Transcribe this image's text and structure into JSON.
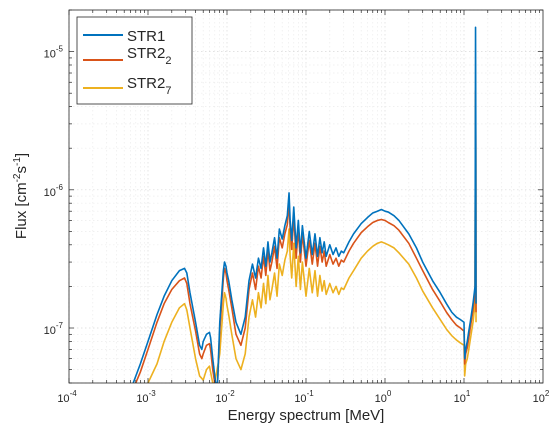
{
  "chart_data": {
    "type": "line",
    "xlabel": "Energy spectrum [MeV]",
    "ylabel": {
      "prefix": "Flux [cm",
      "exp1": "-2",
      "mid": "s",
      "exp2": "-1",
      "suffix": "]"
    },
    "xscale": "log",
    "yscale": "log",
    "xlim": [
      0.0001,
      100
    ],
    "ylim": [
      4e-08,
      2e-05
    ],
    "grid": true,
    "legend_position": "top-left",
    "x_ticks": [
      {
        "base": "10",
        "exp": "-4"
      },
      {
        "base": "10",
        "exp": "-3"
      },
      {
        "base": "10",
        "exp": "-2"
      },
      {
        "base": "10",
        "exp": "-1"
      },
      {
        "base": "10",
        "exp": "0"
      },
      {
        "base": "10",
        "exp": "1"
      },
      {
        "base": "10",
        "exp": "2"
      }
    ],
    "y_ticks": [
      {
        "base": "10",
        "exp": "-7"
      },
      {
        "base": "10",
        "exp": "-6"
      },
      {
        "base": "10",
        "exp": "-5"
      }
    ],
    "series": [
      {
        "name": "STR1",
        "label_main": "STR1",
        "label_sub": "",
        "color": "#0072BD",
        "x": [
          0.00065,
          0.0008,
          0.001,
          0.0013,
          0.0016,
          0.002,
          0.0025,
          0.0029,
          0.0031,
          0.0034,
          0.004,
          0.0045,
          0.0048,
          0.005,
          0.0055,
          0.006,
          0.0062,
          0.0066,
          0.007,
          0.0072,
          0.0076,
          0.0081,
          0.009,
          0.0093,
          0.0097,
          0.01,
          0.0105,
          0.0115,
          0.013,
          0.015,
          0.017,
          0.019,
          0.021,
          0.023,
          0.025,
          0.027,
          0.029,
          0.031,
          0.033,
          0.035,
          0.037,
          0.04,
          0.043,
          0.046,
          0.05,
          0.054,
          0.058,
          0.061,
          0.063,
          0.066,
          0.07,
          0.075,
          0.08,
          0.085,
          0.09,
          0.1,
          0.11,
          0.12,
          0.13,
          0.14,
          0.15,
          0.16,
          0.17,
          0.18,
          0.2,
          0.22,
          0.24,
          0.26,
          0.28,
          0.3,
          0.35,
          0.4,
          0.5,
          0.6,
          0.7,
          0.8,
          0.9,
          1.0,
          1.1,
          1.3,
          1.5,
          2.0,
          2.5,
          3.0,
          4.0,
          5.0,
          6.0,
          7.0,
          8.0,
          9.0,
          10.0,
          10.2,
          10.5,
          11.0,
          11.5,
          12.0,
          13.0,
          13.8,
          14.0,
          14.1,
          14.2
        ],
        "y": [
          4e-08,
          5.5e-08,
          8e-08,
          1.25e-07,
          1.7e-07,
          2.2e-07,
          2.6e-07,
          2.7e-07,
          2.5e-07,
          1.8e-07,
          1.1e-07,
          7.5e-08,
          7e-08,
          8e-08,
          9e-08,
          9.3e-08,
          8.5e-08,
          6e-08,
          4.5e-08,
          4e-08,
          4e-08,
          1.1e-07,
          2.6e-07,
          3e-07,
          2.8e-07,
          2.5e-07,
          2.2e-07,
          1.6e-07,
          1.1e-07,
          9e-08,
          1.2e-07,
          2.2e-07,
          2.9e-07,
          2.3e-07,
          3.2e-07,
          2.7e-07,
          3.8e-07,
          2.8e-07,
          4.2e-07,
          3e-07,
          3.5e-07,
          4.5e-07,
          3.2e-07,
          5.2e-07,
          4.4e-07,
          5.5e-07,
          6.5e-07,
          9.5e-07,
          6e-07,
          4.3e-07,
          7.5e-07,
          3.8e-07,
          6e-07,
          3.5e-07,
          5.5e-07,
          3.2e-07,
          5e-07,
          3.4e-07,
          4.8e-07,
          3.3e-07,
          4.5e-07,
          3.5e-07,
          4.2e-07,
          3.3e-07,
          4e-07,
          3.4e-07,
          3.8e-07,
          3.3e-07,
          3.6e-07,
          3.5e-07,
          4.2e-07,
          4.8e-07,
          5.7e-07,
          6.3e-07,
          6.8e-07,
          7e-07,
          7.2e-07,
          7e-07,
          6.9e-07,
          6.5e-07,
          6e-07,
          4.8e-07,
          3.8e-07,
          3e-07,
          2.2e-07,
          1.8e-07,
          1.5e-07,
          1.3e-07,
          1.2e-07,
          1.15e-07,
          1.1e-07,
          6e-08,
          7e-08,
          8e-08,
          9.5e-08,
          1.1e-07,
          1.5e-07,
          2e-07,
          1.5e-05,
          3e-06,
          1.5e-07
        ]
      },
      {
        "name": "STR2_2",
        "label_main": "STR2",
        "label_sub": "2",
        "color": "#D95319",
        "x": [
          0.0007,
          0.0008,
          0.001,
          0.0013,
          0.0016,
          0.002,
          0.0025,
          0.0029,
          0.0031,
          0.0034,
          0.004,
          0.0045,
          0.0048,
          0.005,
          0.0055,
          0.006,
          0.0062,
          0.0066,
          0.007,
          0.0072,
          0.0076,
          0.0081,
          0.009,
          0.0093,
          0.0097,
          0.01,
          0.0105,
          0.0115,
          0.013,
          0.015,
          0.017,
          0.019,
          0.021,
          0.023,
          0.025,
          0.027,
          0.029,
          0.031,
          0.033,
          0.035,
          0.037,
          0.04,
          0.043,
          0.046,
          0.05,
          0.054,
          0.058,
          0.061,
          0.063,
          0.066,
          0.07,
          0.075,
          0.08,
          0.085,
          0.09,
          0.1,
          0.11,
          0.12,
          0.13,
          0.14,
          0.15,
          0.16,
          0.17,
          0.18,
          0.2,
          0.22,
          0.24,
          0.26,
          0.28,
          0.3,
          0.35,
          0.4,
          0.5,
          0.6,
          0.7,
          0.8,
          0.9,
          1.0,
          1.1,
          1.3,
          1.5,
          2.0,
          2.5,
          3.0,
          4.0,
          5.0,
          6.0,
          7.0,
          8.0,
          9.0,
          10.0,
          10.2,
          10.5,
          11.0,
          11.5,
          12.0,
          13.0,
          13.8,
          14.0,
          14.1,
          14.2
        ],
        "y": [
          4e-08,
          4.8e-08,
          7e-08,
          1.1e-07,
          1.5e-07,
          1.9e-07,
          2.2e-07,
          2.3e-07,
          2.1e-07,
          1.5e-07,
          9.5e-08,
          6.5e-08,
          6e-08,
          6.5e-08,
          7.5e-08,
          7.7e-08,
          7e-08,
          5e-08,
          4e-08,
          4e-08,
          4e-08,
          9.5e-08,
          2.3e-07,
          2.7e-07,
          2.5e-07,
          2.2e-07,
          1.9e-07,
          1.4e-07,
          9e-08,
          7.5e-08,
          1e-07,
          1.9e-07,
          2.5e-07,
          1.9e-07,
          2.8e-07,
          2.3e-07,
          3.3e-07,
          2.4e-07,
          3.7e-07,
          2.6e-07,
          3e-07,
          3.9e-07,
          2.7e-07,
          4.5e-07,
          3.8e-07,
          4.8e-07,
          5.6e-07,
          8.2e-07,
          5.2e-07,
          3.7e-07,
          6.5e-07,
          3.2e-07,
          5.2e-07,
          3e-07,
          4.8e-07,
          2.8e-07,
          4.3e-07,
          2.9e-07,
          4.1e-07,
          2.8e-07,
          3.9e-07,
          3e-07,
          3.6e-07,
          2.8e-07,
          3.4e-07,
          2.9e-07,
          3.2e-07,
          2.8e-07,
          3.1e-07,
          3e-07,
          3.6e-07,
          4.1e-07,
          4.9e-07,
          5.4e-07,
          5.8e-07,
          6e-07,
          6.1e-07,
          6e-07,
          5.8e-07,
          5.5e-07,
          5.1e-07,
          4.1e-07,
          3.2e-07,
          2.6e-07,
          1.9e-07,
          1.55e-07,
          1.3e-07,
          1.15e-07,
          1.05e-07,
          1e-07,
          9.5e-08,
          5.5e-08,
          6.5e-08,
          7.2e-08,
          8.5e-08,
          1e-07,
          1.35e-07,
          1.8e-07,
          5.2e-06,
          2.2e-06,
          1.3e-07
        ]
      },
      {
        "name": "STR2_7",
        "label_main": "STR2",
        "label_sub": "7",
        "color": "#EDB120",
        "x": [
          0.001,
          0.0013,
          0.0016,
          0.002,
          0.0025,
          0.0029,
          0.0031,
          0.0034,
          0.004,
          0.0045,
          0.005,
          0.0055,
          0.006,
          0.0062,
          0.0066,
          0.007,
          0.0081,
          0.009,
          0.0093,
          0.0097,
          0.01,
          0.0105,
          0.0115,
          0.013,
          0.015,
          0.017,
          0.019,
          0.021,
          0.023,
          0.025,
          0.027,
          0.029,
          0.031,
          0.033,
          0.035,
          0.037,
          0.04,
          0.043,
          0.046,
          0.05,
          0.054,
          0.058,
          0.061,
          0.063,
          0.066,
          0.07,
          0.075,
          0.08,
          0.085,
          0.09,
          0.1,
          0.11,
          0.12,
          0.13,
          0.14,
          0.15,
          0.16,
          0.17,
          0.18,
          0.2,
          0.22,
          0.24,
          0.26,
          0.28,
          0.3,
          0.35,
          0.4,
          0.5,
          0.6,
          0.7,
          0.8,
          0.9,
          1.0,
          1.1,
          1.3,
          1.5,
          2.0,
          2.5,
          3.0,
          4.0,
          5.0,
          6.0,
          7.0,
          8.0,
          9.0,
          10.0,
          10.2,
          10.5,
          11.0,
          11.5,
          12.0,
          13.0,
          13.8,
          14.0,
          14.1,
          14.2
        ],
        "y": [
          4e-08,
          5.5e-08,
          8e-08,
          1.1e-07,
          1.4e-07,
          1.5e-07,
          1.35e-07,
          1e-07,
          6e-08,
          4.5e-08,
          4.2e-08,
          5e-08,
          5.3e-08,
          4.8e-08,
          4e-08,
          4e-08,
          6.5e-08,
          1.5e-07,
          1.8e-07,
          1.65e-07,
          1.45e-07,
          1.25e-07,
          9e-08,
          6e-08,
          5e-08,
          6.5e-08,
          1.2e-07,
          1.6e-07,
          1.2e-07,
          1.8e-07,
          1.4e-07,
          2.1e-07,
          1.5e-07,
          2.4e-07,
          1.6e-07,
          1.9e-07,
          2.5e-07,
          1.7e-07,
          2.9e-07,
          2.4e-07,
          3.1e-07,
          3.6e-07,
          5.2e-07,
          3.3e-07,
          2.3e-07,
          4.1e-07,
          2e-07,
          3.3e-07,
          1.9e-07,
          3e-07,
          1.7e-07,
          2.7e-07,
          1.8e-07,
          2.6e-07,
          1.7e-07,
          2.4e-07,
          1.85e-07,
          2.2e-07,
          1.75e-07,
          2.1e-07,
          1.8e-07,
          2e-07,
          1.75e-07,
          1.95e-07,
          1.9e-07,
          2.3e-07,
          2.6e-07,
          3.2e-07,
          3.6e-07,
          3.9e-07,
          4.1e-07,
          4.2e-07,
          4.1e-07,
          4e-07,
          3.8e-07,
          3.5e-07,
          2.9e-07,
          2.3e-07,
          1.85e-07,
          1.4e-07,
          1.15e-07,
          9.8e-08,
          8.8e-08,
          8.2e-08,
          7.8e-08,
          7.5e-08,
          4.5e-08,
          5.5e-08,
          6e-08,
          7e-08,
          8.2e-08,
          1.1e-07,
          1.5e-07,
          4.5e-06,
          1.8e-06,
          1.1e-07
        ]
      }
    ]
  }
}
